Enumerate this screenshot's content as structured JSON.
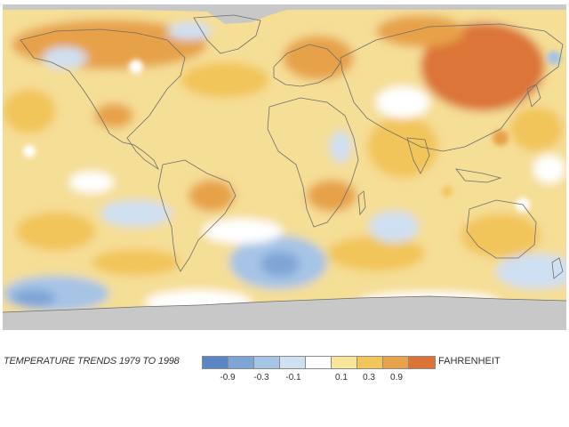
{
  "legend": {
    "caption": "TEMPERATURE TRENDS 1979 TO 1998",
    "unit": "FAHRENHEIT",
    "colors": [
      "#5b86c4",
      "#7fa5d6",
      "#a6c4e6",
      "#cfe0f2",
      "#ffffff",
      "#f9e59a",
      "#f2c55a",
      "#e7a24a",
      "#dc7438"
    ],
    "ticks": [
      "-0.9",
      "-0.3",
      "-0.1",
      "0.1",
      "0.3",
      "0.9"
    ]
  },
  "map": {
    "ocean_base_color": "#f5de96",
    "land_outline_color": "#6e6e6e",
    "no_data_color": "#c8c8c8"
  }
}
